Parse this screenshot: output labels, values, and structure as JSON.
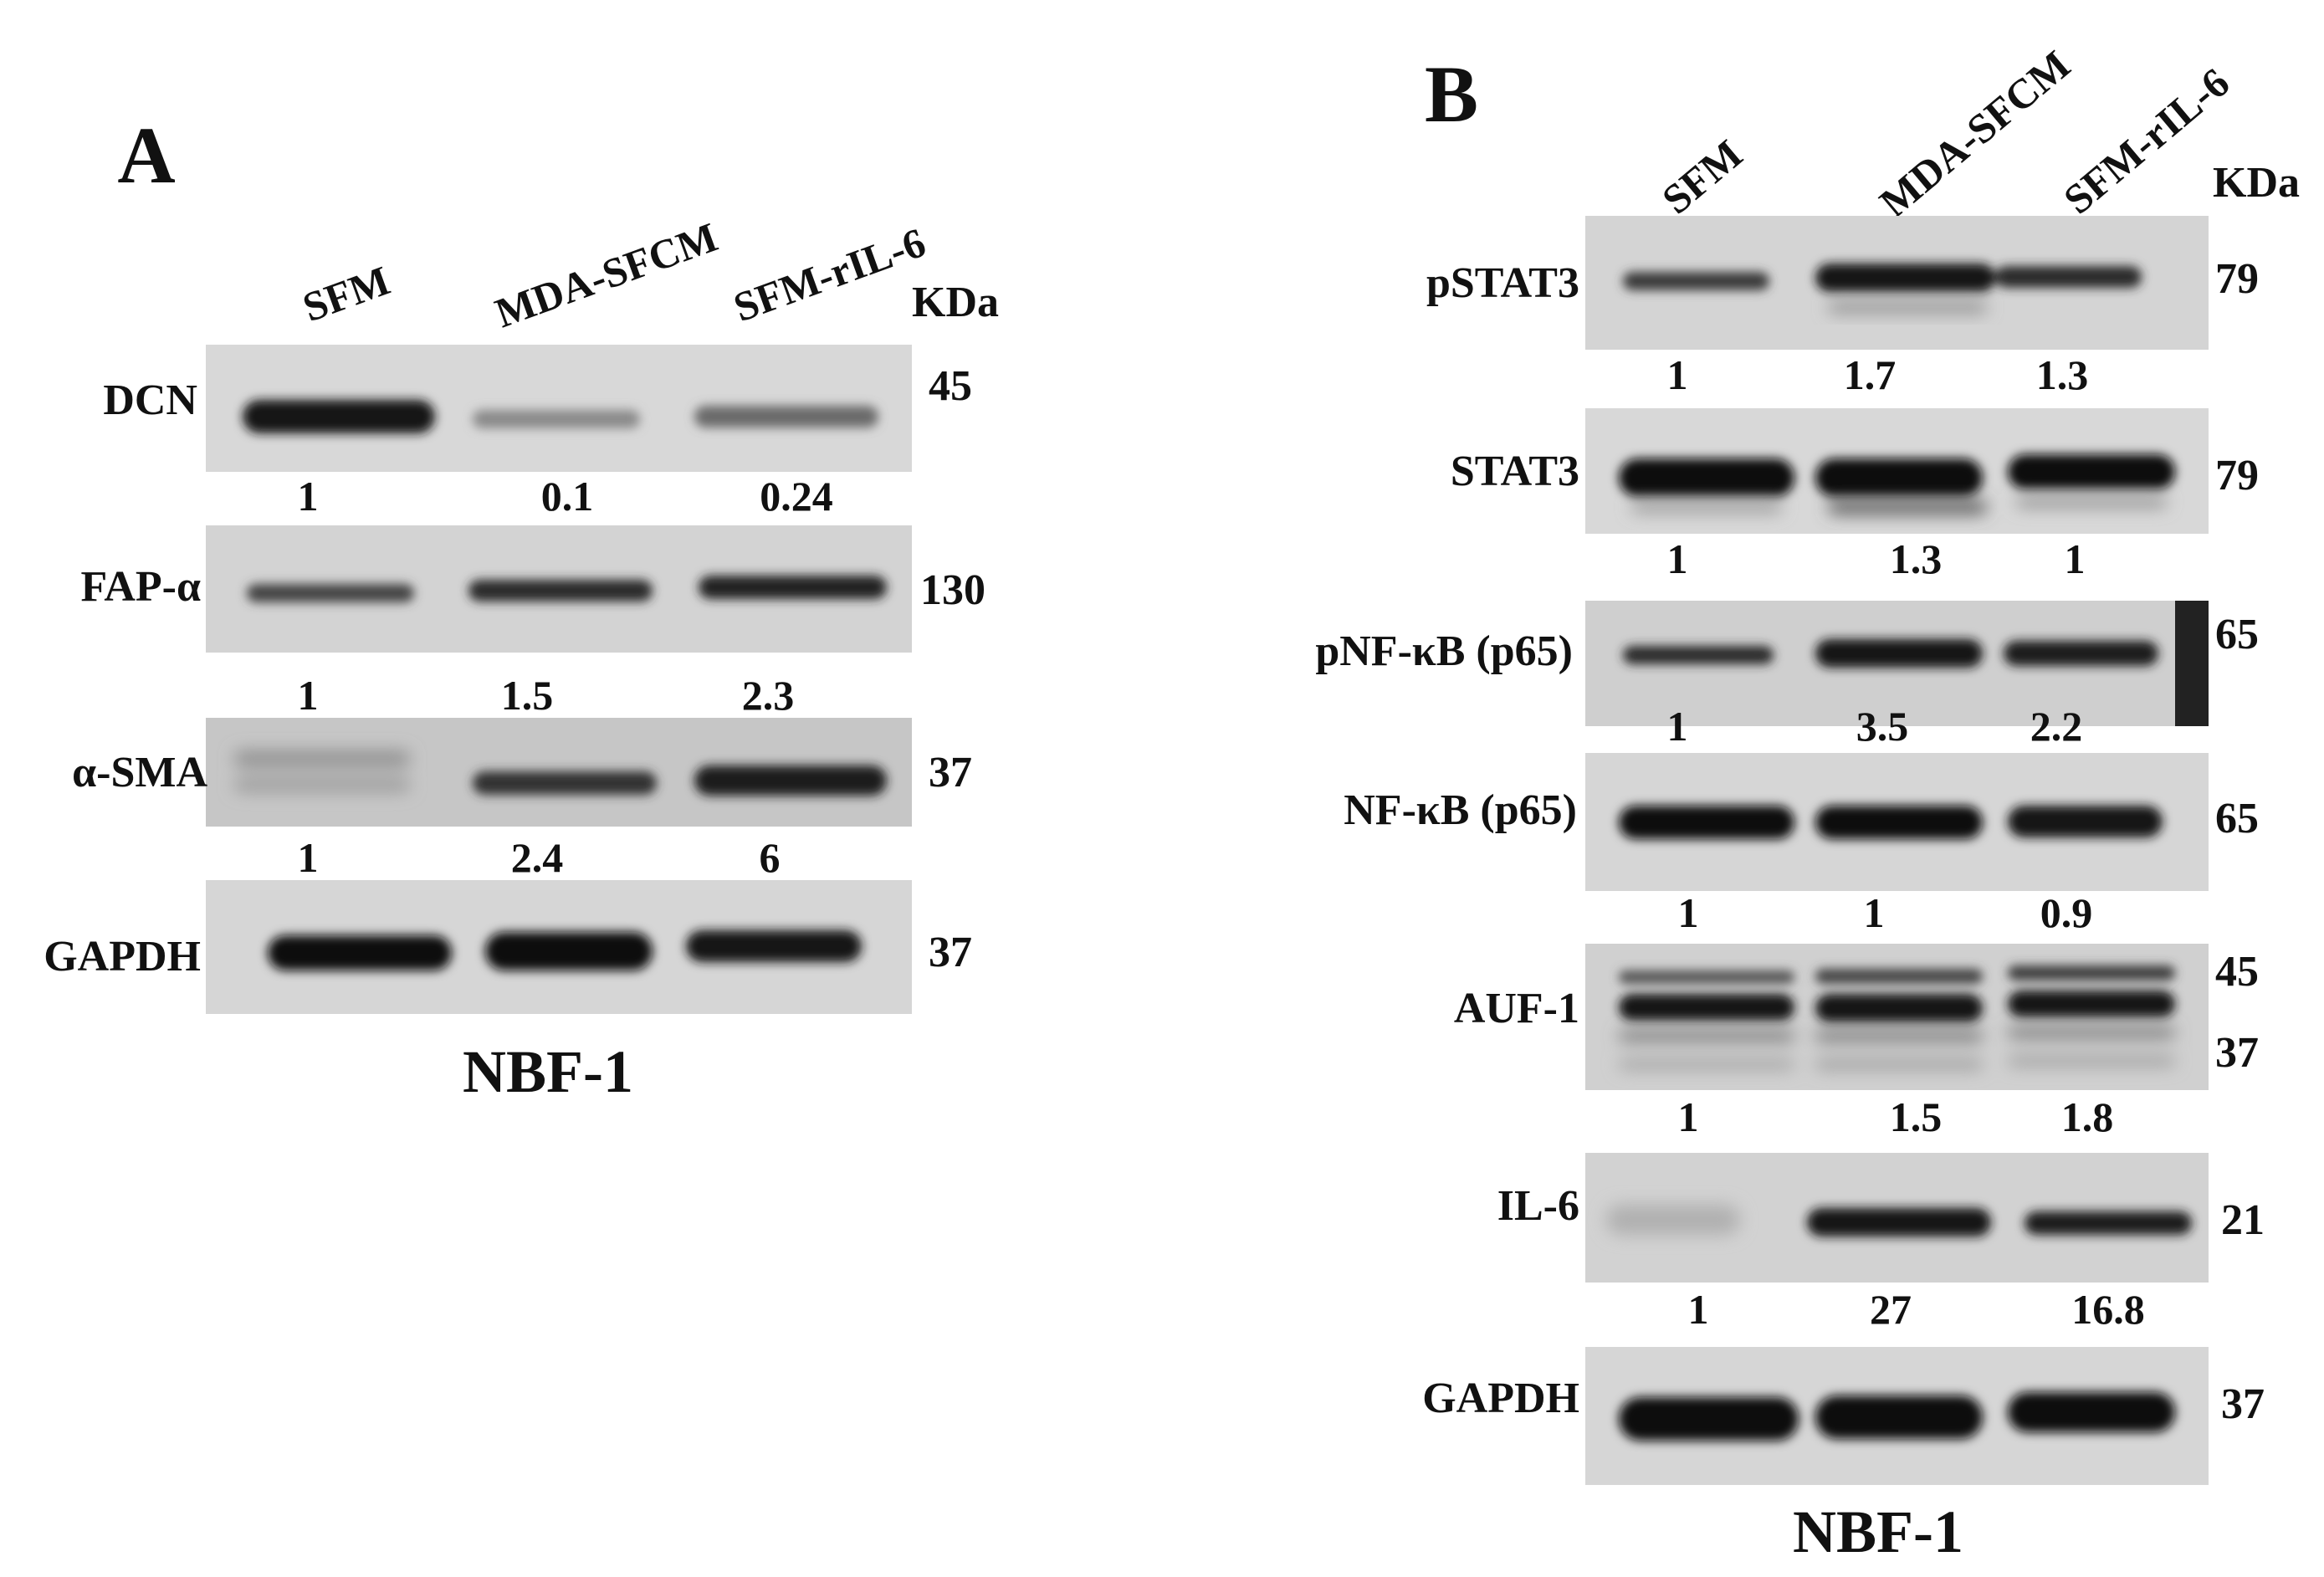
{
  "panels": [
    {
      "letter": "A",
      "lanes": [
        "SFM",
        "MDA-SFCM",
        "SFM-rIL-6"
      ],
      "kda_header": "KDa",
      "cell_line": "NBF-1",
      "blots": [
        {
          "protein": "DCN",
          "kda": [
            "45"
          ],
          "quant": [
            "1",
            "0.1",
            "0.24"
          ]
        },
        {
          "protein": "FAP-α",
          "kda": [
            "130"
          ],
          "quant": [
            "1",
            "1.5",
            "2.3"
          ]
        },
        {
          "protein": "α-SMA",
          "kda": [
            "37"
          ],
          "quant": [
            "1",
            "2.4",
            "6"
          ]
        },
        {
          "protein": "GAPDH",
          "kda": [
            "37"
          ],
          "quant": []
        }
      ]
    },
    {
      "letter": "B",
      "lanes": [
        "SFM",
        "MDA-SFCM",
        "SFM-rIL-6"
      ],
      "kda_header": "KDa",
      "cell_line": "NBF-1",
      "blots": [
        {
          "protein": "pSTAT3",
          "kda": [
            "79"
          ],
          "quant": [
            "1",
            "1.7",
            "1.3"
          ]
        },
        {
          "protein": "STAT3",
          "kda": [
            "79"
          ],
          "quant": [
            "1",
            "1.3",
            "1"
          ]
        },
        {
          "protein": "pNF-κB (p65)",
          "kda": [
            "65"
          ],
          "quant": [
            "1",
            "3.5",
            "2.2"
          ]
        },
        {
          "protein": "NF-κB (p65)",
          "kda": [
            "65"
          ],
          "quant": [
            "1",
            "1",
            "0.9"
          ]
        },
        {
          "protein": "AUF-1",
          "kda": [
            "45",
            "37"
          ],
          "quant": [
            "1",
            "1.5",
            "1.8"
          ]
        },
        {
          "protein": "IL-6",
          "kda": [
            "21"
          ],
          "quant": [
            "1",
            "27",
            "16.8"
          ]
        },
        {
          "protein": "GAPDH",
          "kda": [
            "37"
          ],
          "quant": []
        }
      ]
    }
  ]
}
